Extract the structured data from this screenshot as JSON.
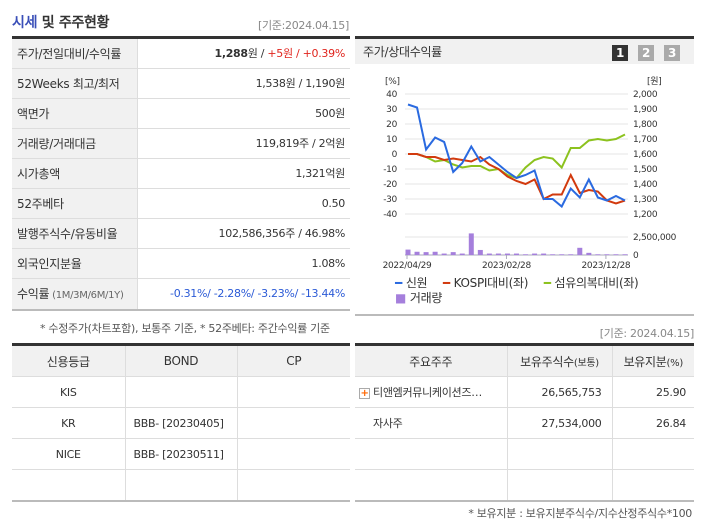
{
  "header": {
    "title_highlight": "시세",
    "title_rest": " 및 주주현황",
    "date": "[기준:2024.04.15]"
  },
  "price_table": [
    {
      "label": "주가/전일대비/수익률",
      "price": "1,288",
      "price_unit": "원 / ",
      "change": "+5원 / +0.39%"
    },
    {
      "label": "52Weeks 최고/최저",
      "value": "1,538원 / 1,190원"
    },
    {
      "label": "액면가",
      "value": "500원"
    },
    {
      "label": "거래량/거래대금",
      "value": "119,819주 / 2억원"
    },
    {
      "label": "시가총액",
      "value": "1,321억원"
    },
    {
      "label": "52주베타",
      "value": "0.50"
    },
    {
      "label": "발행주식수/유동비율",
      "value": "102,586,356주 / 46.98%"
    },
    {
      "label": "외국인지분율",
      "value": "1.08%"
    },
    {
      "label": "수익률",
      "label_sub": " (1M/3M/6M/1Y)",
      "value": "-0.31%/ -2.28%/ -3.23%/ -13.44%"
    }
  ],
  "note1": "* 수정주가(차트포함), 보통주 기준, * 52주베타: 주간수익률 기준",
  "chart_panel": {
    "title": "주가/상대수익률",
    "pages": [
      "1",
      "2",
      "3"
    ],
    "active_page": "1"
  },
  "chart_data": {
    "type": "line",
    "left_unit": "[%]",
    "right_unit": "[원]",
    "left_ticks": [
      40,
      30,
      20,
      10,
      0,
      -10,
      -20,
      -30,
      -40
    ],
    "right_ticks": [
      "2,000",
      "1,900",
      "1,800",
      "1,700",
      "1,600",
      "1,500",
      "1,400",
      "1,300",
      "1,200"
    ],
    "volume_ticks": [
      "2,500,000",
      "0"
    ],
    "x_labels": [
      "2022/04/29",
      "2023/02/28",
      "2023/12/28"
    ],
    "ylim": [
      -40,
      40
    ],
    "series": [
      {
        "name": "신원",
        "color": "#2a6ae0",
        "values": [
          33,
          31,
          3,
          11,
          8,
          -12,
          -6,
          5,
          -5,
          -2,
          -7,
          -12,
          -16,
          -14,
          -11,
          -30,
          -30,
          -35,
          -23,
          -29,
          -17,
          -29,
          -31,
          -28,
          -31
        ]
      },
      {
        "name": "KOSPI대비(좌)",
        "color": "#d23a0e",
        "values": [
          0,
          0,
          -2,
          -2,
          -4,
          -3,
          -4,
          -5,
          -2,
          -7,
          -10,
          -15,
          -18,
          -20,
          -17,
          -30,
          -27,
          -27,
          -14,
          -26,
          -24,
          -25,
          -31,
          -33,
          -31
        ]
      },
      {
        "name": "섬유의복대비(좌)",
        "color": "#8cc21e",
        "values": [
          0,
          0,
          -2,
          -5,
          -4,
          -7,
          -9,
          -8,
          -8,
          -11,
          -10,
          -14,
          -16,
          -9,
          -4,
          -2,
          -3,
          -9,
          4,
          4,
          9,
          10,
          9,
          10,
          13
        ]
      }
    ],
    "volume": {
      "name": "거래량",
      "color": "#a57fdc",
      "max": 2500000,
      "values": [
        750000,
        450000,
        400000,
        450000,
        200000,
        400000,
        200000,
        3000000,
        700000,
        200000,
        200000,
        200000,
        200000,
        100000,
        200000,
        200000,
        100000,
        100000,
        100000,
        1000000,
        300000,
        100000,
        100000,
        100000,
        100000
      ]
    }
  },
  "date2": "[기준: 2024.04.15]",
  "credit": {
    "headers": [
      "신용등급",
      "BOND",
      "CP"
    ],
    "rows": [
      [
        "KIS",
        "",
        ""
      ],
      [
        "KR",
        "BBB-  [20230405]",
        ""
      ],
      [
        "NICE",
        "BBB-  [20230511]",
        ""
      ],
      [
        "",
        "",
        ""
      ]
    ]
  },
  "holders": {
    "headers": [
      "주요주주",
      "보유주식수",
      "(보통)",
      "보유지분",
      "(%)"
    ],
    "rows": [
      [
        "티앤엠커뮤니케이션즈…",
        "26,565,753",
        "25.90"
      ],
      [
        "자사주",
        "27,534,000",
        "26.84"
      ],
      [
        "",
        "",
        ""
      ],
      [
        "",
        "",
        ""
      ]
    ]
  },
  "note2": "* 보유지분 : 보유지분주식수/지수산정주식수*100"
}
